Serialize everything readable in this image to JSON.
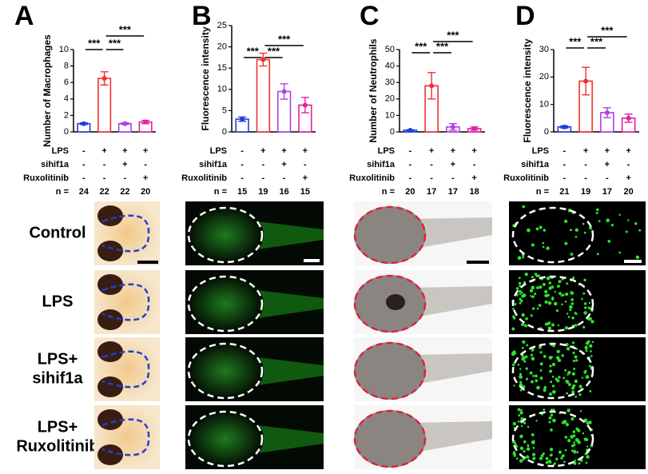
{
  "chart_data": [
    {
      "type": "bar",
      "panel": "A",
      "ylabel": "Number of Macrophages",
      "values": [
        1,
        6.5,
        1,
        1.2
      ],
      "errors": [
        0.1,
        0.8,
        0.1,
        0.2
      ],
      "colors": [
        "#1f3fd6",
        "#f03030",
        "#b040e0",
        "#e020a0"
      ],
      "ylim": [
        0,
        10
      ],
      "yticks": [
        0,
        2,
        4,
        6,
        8,
        10
      ],
      "conditions": [
        {
          "name": "LPS",
          "marks": [
            "-",
            "+",
            "+",
            "+"
          ]
        },
        {
          "name": "sihif1a",
          "marks": [
            "-",
            "-",
            "+",
            "-"
          ]
        },
        {
          "name": "Ruxolitinib",
          "marks": [
            "-",
            "-",
            "-",
            "+"
          ]
        }
      ],
      "n_label": "n =",
      "n": [
        24,
        22,
        22,
        20
      ],
      "significance": [
        "***",
        "***",
        "***"
      ]
    },
    {
      "type": "bar",
      "panel": "B",
      "ylabel": "Fluorescence intensity",
      "values": [
        3,
        17,
        9.5,
        6.3
      ],
      "errors": [
        0.5,
        1.5,
        1.8,
        1.8
      ],
      "colors": [
        "#1f3fd6",
        "#f03030",
        "#b040e0",
        "#e020a0"
      ],
      "ylim": [
        0,
        25
      ],
      "yticks": [
        0,
        5,
        10,
        15,
        20,
        25
      ],
      "conditions": [
        {
          "name": "LPS",
          "marks": [
            "-",
            "+",
            "+",
            "+"
          ]
        },
        {
          "name": "sihif1a",
          "marks": [
            "-",
            "-",
            "+",
            "-"
          ]
        },
        {
          "name": "Ruxolitinib",
          "marks": [
            "-",
            "-",
            "-",
            "+"
          ]
        }
      ],
      "n_label": "n =",
      "n": [
        15,
        19,
        16,
        15
      ],
      "significance": [
        "***",
        "***",
        "***"
      ]
    },
    {
      "type": "bar",
      "panel": "C",
      "ylabel": "Number of Neutrophils",
      "values": [
        1,
        28,
        3,
        2
      ],
      "errors": [
        0.3,
        8,
        2,
        1
      ],
      "colors": [
        "#1f3fd6",
        "#f03030",
        "#b040e0",
        "#e020a0"
      ],
      "ylim": [
        0,
        50
      ],
      "yticks": [
        0,
        10,
        20,
        30,
        40,
        50
      ],
      "conditions": [
        {
          "name": "LPS",
          "marks": [
            "-",
            "+",
            "+",
            "+"
          ]
        },
        {
          "name": "sihif1a",
          "marks": [
            "-",
            "-",
            "+",
            "-"
          ]
        },
        {
          "name": "Ruxolitinib",
          "marks": [
            "-",
            "-",
            "-",
            "+"
          ]
        }
      ],
      "n_label": "n =",
      "n": [
        20,
        17,
        17,
        18
      ],
      "significance": [
        "***",
        "***",
        "***"
      ]
    },
    {
      "type": "bar",
      "panel": "D",
      "ylabel": "Fluorescence intensity",
      "values": [
        1.8,
        18.5,
        7,
        5
      ],
      "errors": [
        0.4,
        5,
        1.8,
        1.5
      ],
      "colors": [
        "#1f3fd6",
        "#f03030",
        "#b040e0",
        "#e020a0"
      ],
      "ylim": [
        0,
        30
      ],
      "yticks": [
        0,
        10,
        20,
        30
      ],
      "conditions": [
        {
          "name": "LPS",
          "marks": [
            "-",
            "+",
            "+",
            "+"
          ]
        },
        {
          "name": "sihif1a",
          "marks": [
            "-",
            "-",
            "+",
            "-"
          ]
        },
        {
          "name": "Ruxolitinib",
          "marks": [
            "-",
            "-",
            "-",
            "+"
          ]
        }
      ],
      "n_label": "n =",
      "n": [
        21,
        19,
        17,
        20
      ],
      "significance": [
        "***",
        "***",
        "***"
      ]
    }
  ],
  "image_rows": [
    [
      "Control"
    ],
    [
      "LPS"
    ],
    [
      "LPS+",
      "sihif1a"
    ],
    [
      "LPS+",
      "Ruxolitinib"
    ]
  ]
}
